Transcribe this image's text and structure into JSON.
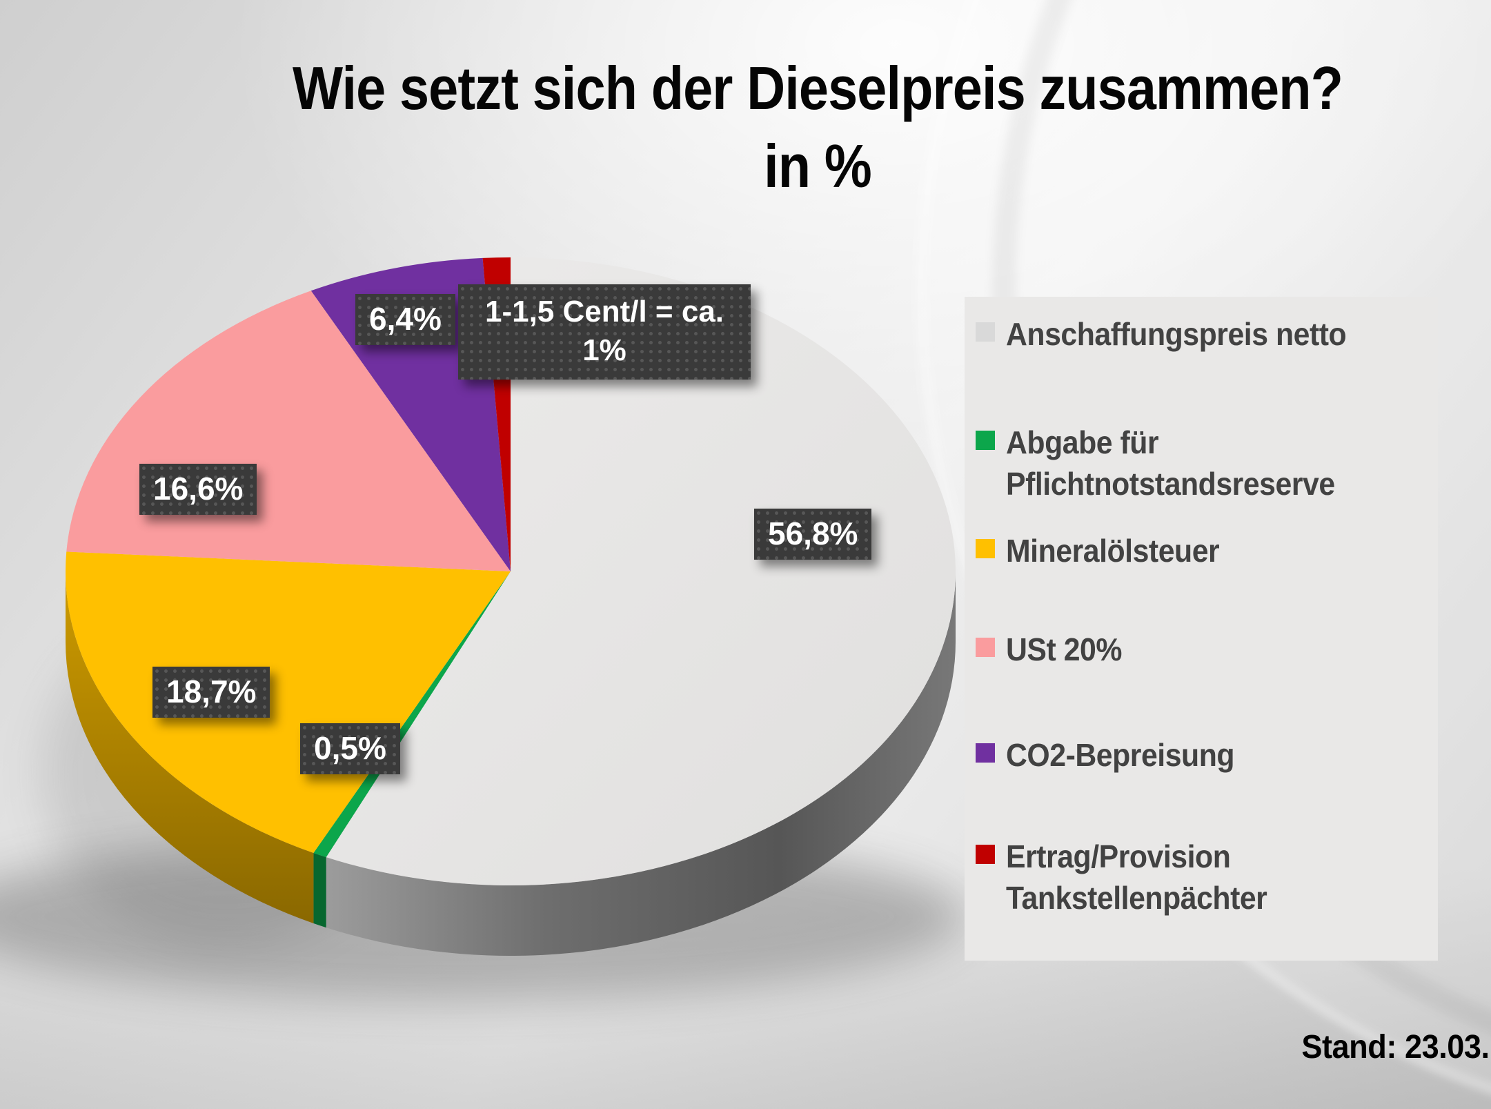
{
  "chart_data": {
    "type": "pie",
    "title": "Wie setzt sich der Dieselpreis zusammen?",
    "subtitle": "in %",
    "unit": "%",
    "direction": "clockwise",
    "start_angle_deg": 0,
    "effect": "3d",
    "legend_position": "right",
    "slices": [
      {
        "label": "Anschaffungspreis netto",
        "value": 56.8,
        "percent_label": "56,8%",
        "color": "#D9D9D9"
      },
      {
        "label": "Abgabe für Pflichtnotstandsreserve",
        "value": 0.5,
        "percent_label": "0,5%",
        "color": "#0CA64B"
      },
      {
        "label": "Mineralölsteuer",
        "value": 18.7,
        "percent_label": "18,7%",
        "color": "#FFC000"
      },
      {
        "label": "USt 20%",
        "value": 16.6,
        "percent_label": "16,6%",
        "color": "#FA9C9E"
      },
      {
        "label": "CO2-Bepreisung",
        "value": 6.4,
        "percent_label": "6,4%",
        "color": "#7030A0"
      },
      {
        "label": "Ertrag/Provision Tankstellenpächter",
        "value": 1.0,
        "percent_label": "1-1,5 Cent/l = ca. 1%",
        "callout_lines": [
          "1-1,5 Cent/l = ca.",
          "1%"
        ],
        "color": "#C00000"
      }
    ]
  },
  "footnote": {
    "text": "Stand: 23.03."
  }
}
